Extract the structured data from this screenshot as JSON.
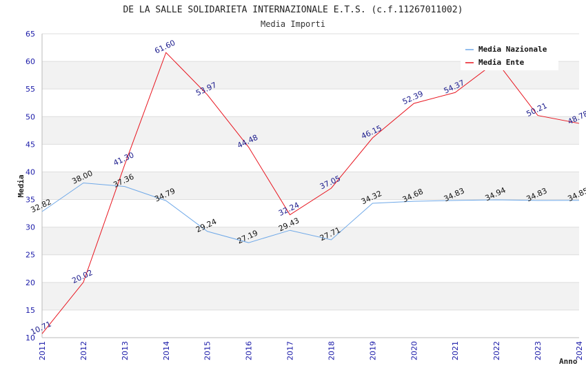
{
  "chart_data": {
    "type": "line",
    "title": "DE LA SALLE SOLIDARIETA INTERNAZIONALE E.T.S. (c.f.11267011002)",
    "subtitle": "Media Importi",
    "xlabel": "Anno",
    "ylabel": "Media",
    "ylim": [
      10,
      65
    ],
    "yticks": [
      10,
      15,
      20,
      25,
      30,
      35,
      40,
      45,
      50,
      55,
      60,
      65
    ],
    "categories": [
      "2011",
      "2012",
      "2013",
      "2014",
      "2015",
      "2016",
      "2017",
      "2018",
      "2019",
      "2020",
      "2021",
      "2022",
      "2023",
      "2024"
    ],
    "grid": "horizontal-bands",
    "legend_position": "top-right",
    "series": [
      {
        "name": "Media Nazionale",
        "color": "#6ea8e8",
        "label_color": "#111111",
        "values": [
          32.82,
          38.0,
          37.36,
          34.79,
          29.24,
          27.19,
          29.43,
          27.71,
          34.32,
          34.68,
          34.83,
          34.94,
          34.83,
          34.85
        ],
        "labels": [
          "32.82",
          "38.00",
          "37.36",
          "34.79",
          "29.24",
          "27.19",
          "29.43",
          "27.71",
          "34.32",
          "34.68",
          "34.83",
          "34.94",
          "34.83",
          "34.85"
        ]
      },
      {
        "name": "Media Ente",
        "color": "#e8141e",
        "label_color": "#1a1a8c",
        "values": [
          10.71,
          20.02,
          41.3,
          61.6,
          53.97,
          44.48,
          32.24,
          37.05,
          46.15,
          52.39,
          54.37,
          60.0,
          50.21,
          48.78
        ],
        "labels": [
          "10.71",
          "20.02",
          "41.30",
          "61.60",
          "53.97",
          "44.48",
          "32.24",
          "37.05",
          "46.15",
          "52.39",
          "54.37",
          "",
          "50.21",
          "48.78"
        ]
      }
    ]
  }
}
